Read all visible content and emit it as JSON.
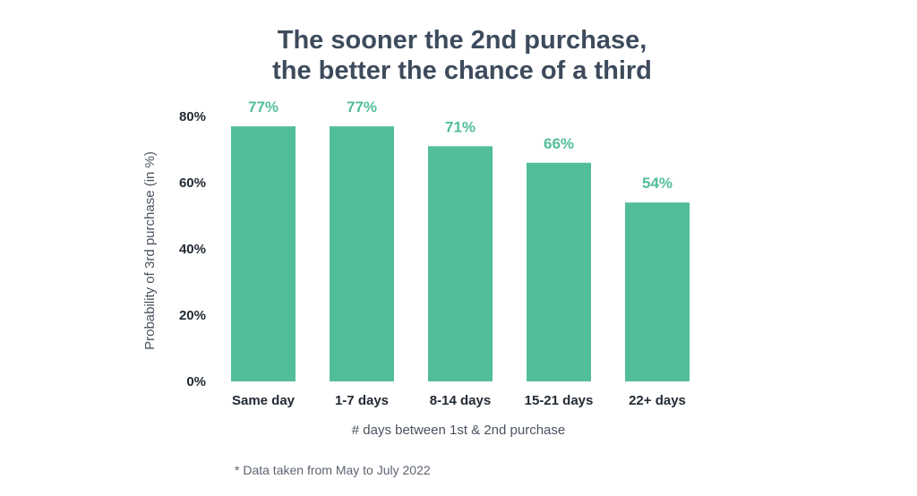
{
  "chart_data": {
    "type": "bar",
    "title_lines": [
      "The sooner the 2nd purchase,",
      "the better the chance of a third"
    ],
    "categories": [
      "Same day",
      "1-7 days",
      "8-14 days",
      "15-21 days",
      "22+ days"
    ],
    "values": [
      77,
      77,
      71,
      66,
      54
    ],
    "value_labels": [
      "77%",
      "77%",
      "71%",
      "66%",
      "54%"
    ],
    "xlabel": "# days between 1st & 2nd purchase",
    "ylabel": "Probability of 3rd purchase (in %)",
    "ylim": [
      0,
      80
    ],
    "yticks": [
      0,
      20,
      40,
      60,
      80
    ],
    "ytick_labels": [
      "0%",
      "20%",
      "40%",
      "60%",
      "80%"
    ],
    "grid": false,
    "legend": "none",
    "bar_color": "#52be98",
    "footnote": "* Data taken from May to July 2022"
  }
}
